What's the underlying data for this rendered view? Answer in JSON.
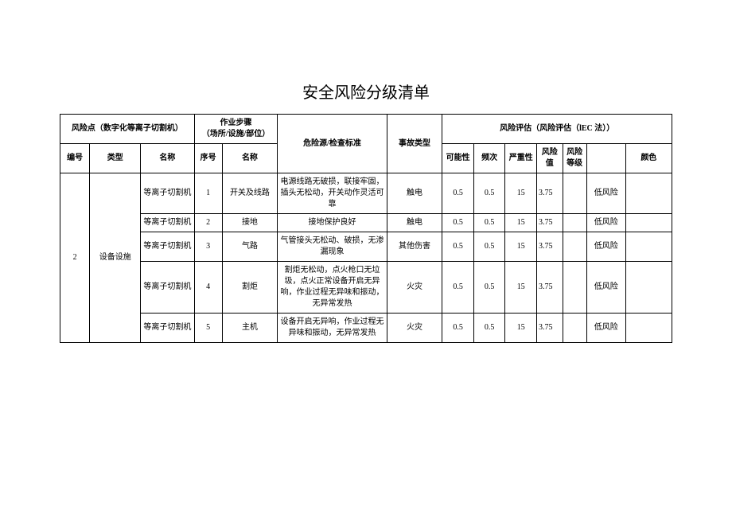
{
  "title": "安全风险分级清单",
  "header": {
    "risk_point_group": "风险点（数字化等离子切割机）",
    "step_group": "作业步骤\n（场所/设施/部位）",
    "source": "危险源/检查标准",
    "accident": "事故类型",
    "eval_group": "风险评估（风险评估（lEC 法））",
    "no": "编号",
    "type": "类型",
    "name": "名称",
    "step_no": "序号",
    "step_name": "名称",
    "poss": "可能性",
    "freq": "频次",
    "sev": "严重性",
    "val": "风险值",
    "lvl": "风险\n等级",
    "rlvl": "",
    "color": "颜色"
  },
  "group": {
    "no": "2",
    "type": "设备设施"
  },
  "rows": [
    {
      "name": "等离子切割机",
      "step_no": "1",
      "step_name": "开关及线路",
      "source": "电源线路无破损，联接牢固，插头无松动，开关动作灵活可靠",
      "accident": "触电",
      "poss": "0.5",
      "freq": "0.5",
      "sev": "15",
      "val": "3.75",
      "rlvl": "低风险"
    },
    {
      "name": "等离子切割机",
      "step_no": "2",
      "step_name": "接地",
      "source": "接地保护良好",
      "accident": "触电",
      "poss": "0.5",
      "freq": "0.5",
      "sev": "15",
      "val": "3.75",
      "rlvl": "低风险"
    },
    {
      "name": "等离子切割机",
      "step_no": "3",
      "step_name": "气路",
      "source": "气管接头无松动、破损，无渗漏现象",
      "accident": "其他伤害",
      "poss": "0.5",
      "freq": "0.5",
      "sev": "15",
      "val": "3.75",
      "rlvl": "低风险"
    },
    {
      "name": "等离子切割机",
      "step_no": "4",
      "step_name": "割炬",
      "source": "割炬无松动，点火枪口无垃圾，点火正常设备开启无异响，作业过程无异味和振动，无异常发热",
      "accident": "火灾",
      "poss": "0.5",
      "freq": "0.5",
      "sev": "15",
      "val": "3.75",
      "rlvl": "低风险"
    },
    {
      "name": "等离子切割机",
      "step_no": "5",
      "step_name": "主机",
      "source": "设备开启无异响，作业过程无异味和振动，无异常发热",
      "accident": "火灾",
      "poss": "0.5",
      "freq": "0.5",
      "sev": "15",
      "val": "3.75",
      "rlvl": "低风险"
    }
  ]
}
